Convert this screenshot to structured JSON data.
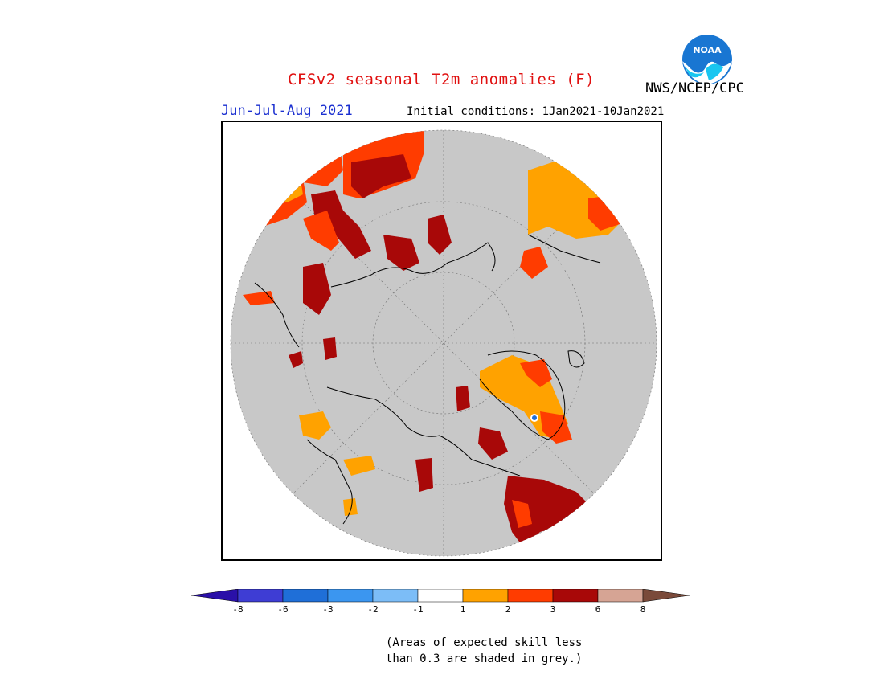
{
  "title": "CFSv2 seasonal T2m anomalies (F)",
  "agency": "NWS/NCEP/CPC",
  "season": "Jun-Jul-Aug 2021",
  "initial_conditions": "Initial conditions: 1Jan2021-10Jan2021",
  "logo_text": "NOAA",
  "footnote": {
    "line1": "(Areas of expected skill less",
    "line2": "than 0.3 are shaded in grey.)"
  },
  "colorbar": {
    "tick_labels": [
      "-8",
      "-6",
      "-3",
      "-2",
      "-1",
      "1",
      "2",
      "3",
      "6",
      "8"
    ],
    "colors": [
      "#2a10a8",
      "#3e3dd4",
      "#1f6fd8",
      "#3b96f0",
      "#7cbdf7",
      "#ffffff",
      "#ffa200",
      "#ff3c00",
      "#a80808",
      "#d6a494",
      "#7a4a3a"
    ],
    "cells": [
      {
        "color": "#3e3dd4"
      },
      {
        "color": "#1f6fd8"
      },
      {
        "color": "#3b96f0"
      },
      {
        "color": "#7cbdf7"
      },
      {
        "color": "#ffffff"
      },
      {
        "color": "#ffa200"
      },
      {
        "color": "#ff3c00"
      },
      {
        "color": "#a80808"
      },
      {
        "color": "#d6a494"
      }
    ]
  },
  "colors": {
    "skill_grey": "#c8c8c8",
    "warm_1_2": "#ffa200",
    "warm_2_3": "#ff3c00",
    "warm_3_6": "#a80808",
    "title_red": "#e01010",
    "season_blue": "#1a2fd0"
  }
}
